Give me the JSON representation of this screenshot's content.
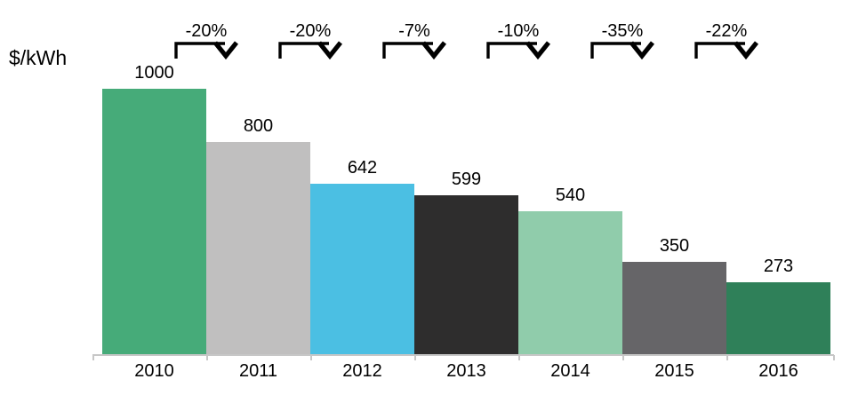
{
  "chart_data": {
    "type": "bar",
    "title": "",
    "ylabel": "$/kWh",
    "xlabel": "",
    "categories": [
      "2010",
      "2011",
      "2012",
      "2013",
      "2014",
      "2015",
      "2016"
    ],
    "values": [
      1000,
      800,
      642,
      599,
      540,
      350,
      273
    ],
    "bar_colors": [
      "#46ab79",
      "#c0bfbf",
      "#4bbfe3",
      "#2e2d2d",
      "#90ccab",
      "#666568",
      "#2f8059"
    ],
    "value_labels": [
      "1000",
      "800",
      "642",
      "599",
      "540",
      "350",
      "273"
    ],
    "annotations": [
      {
        "label": "-20%",
        "from": "2010",
        "to": "2011"
      },
      {
        "label": "-20%",
        "from": "2011",
        "to": "2012"
      },
      {
        "label": "-7%",
        "from": "2012",
        "to": "2013"
      },
      {
        "label": "-10%",
        "from": "2013",
        "to": "2014"
      },
      {
        "label": "-35%",
        "from": "2014",
        "to": "2015"
      },
      {
        "label": "-22%",
        "from": "2015",
        "to": "2016"
      }
    ],
    "ylim": [
      0,
      1000
    ],
    "grid": false,
    "legend": false,
    "axis_color": "#c7c7c7",
    "text_color": "#000000",
    "arrow_icon": "down-bent-arrow"
  }
}
